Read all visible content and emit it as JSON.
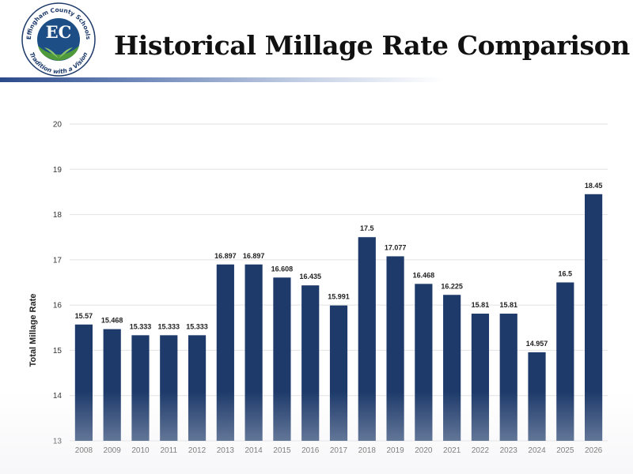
{
  "slide": {
    "title": "Historical Millage Rate Comparison",
    "logo": {
      "initials": "EC",
      "ring_text_top": "Effingham County Schools",
      "ring_text_bottom": "Tradition with a Vision"
    }
  },
  "colors": {
    "bar": "#1d3a6a",
    "title_rule": "#2b4a8a"
  },
  "chart_data": {
    "type": "bar",
    "categories": [
      "2008",
      "2009",
      "2010",
      "2011",
      "2012",
      "2013",
      "2014",
      "2015",
      "2016",
      "2017",
      "2018",
      "2019",
      "2020",
      "2021",
      "2022",
      "2023",
      "2024",
      "2025",
      "2026"
    ],
    "values": [
      15.57,
      15.468,
      15.333,
      15.333,
      15.333,
      16.897,
      16.897,
      16.608,
      16.435,
      15.991,
      17.5,
      17.077,
      16.468,
      16.225,
      15.81,
      15.81,
      14.957,
      16.5,
      18.45
    ],
    "value_labels": [
      "15.57",
      "15.468",
      "15.333",
      "15.333",
      "15.333",
      "16.897",
      "16.897",
      "16.608",
      "16.435",
      "15.991",
      "17.5",
      "17.077",
      "16.468",
      "16.225",
      "15.81",
      "15.81",
      "14.957",
      "16.5",
      "18.45"
    ],
    "title": "",
    "xlabel": "",
    "ylabel": "Total Millage Rate",
    "ylim": [
      13,
      20
    ],
    "yticks": [
      "13",
      "14",
      "15",
      "16",
      "17",
      "18",
      "19",
      "20"
    ],
    "grid": true,
    "legend": "none"
  }
}
